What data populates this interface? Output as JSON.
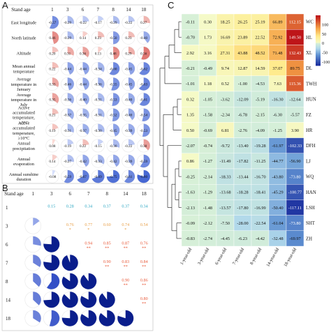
{
  "panels": {
    "a": "A",
    "b": "B",
    "c": "C"
  },
  "colors": {
    "positive": "#d7301f",
    "negative": "#2b5ecf",
    "dark_negative": "#0a1e8c",
    "corr_text": "#e85a3a",
    "corr_text_cyan": "#2aa6c2",
    "corr_text_orange": "#e8a04a"
  },
  "chart_data": [
    {
      "type": "heatmap",
      "panel": "A",
      "corner_label": "Stand age",
      "columns": [
        "1",
        "3",
        "6",
        "7",
        "8",
        "14",
        "18"
      ],
      "rows": [
        "East longitude",
        "North latitude",
        "Altitude",
        "Mean annual temperature",
        "Average temperature in January",
        "Average temperature in July",
        "Active accumulated temperature, ≥5°C",
        "Active accumulated temperature, ≥10°C",
        "Annual precipitation",
        "Annual evaporation",
        "Annual sunshine duration"
      ],
      "values": [
        [
          -0.57,
          -0.29,
          -0.22,
          -0.17,
          -0.29,
          -0.22,
          0.27
        ],
        [
          0.46,
          -0.29,
          0.14,
          0.23,
          -0.5,
          0.23,
          -0.4
        ],
        [
          0.2,
          0.31,
          0.36,
          0.13,
          0.48,
          0.29,
          0.56
        ],
        [
          0.22,
          -0.44,
          -0.44,
          -0.34,
          -0.6,
          -0.45,
          -0.62
        ],
        [
          0.33,
          -0.46,
          -0.44,
          -0.36,
          -0.55,
          -0.45,
          -0.63
        ],
        [
          0.35,
          -0.36,
          -0.4,
          -0.31,
          -0.53,
          -0.4,
          -0.61
        ],
        [
          0.21,
          -0.37,
          -0.35,
          -0.31,
          -0.52,
          -0.4,
          -0.54
        ],
        [
          0.19,
          -0.31,
          -0.37,
          -0.3,
          -0.45,
          -0.39,
          -0.53
        ],
        [
          0.08,
          -0.19,
          0.22,
          -0.15,
          -0.3,
          -0.22,
          0.38
        ],
        [
          0.14,
          -0.27,
          -0.42,
          -0.33,
          -0.42,
          -0.39,
          -0.59
        ],
        [
          -0.08,
          -0.59,
          -0.67,
          -0.69,
          -0.75,
          -0.61,
          -0.8
        ]
      ]
    },
    {
      "type": "heatmap",
      "panel": "B",
      "corner_label": "Stand age",
      "labels": [
        "1",
        "3",
        "6",
        "7",
        "8",
        "14",
        "18"
      ],
      "upper_values": {
        "0-1": 0.15,
        "0-2": 0.28,
        "0-3": 0.34,
        "0-4": 0.37,
        "0-5": 0.37,
        "0-6": 0.34,
        "1-2": 0.76,
        "1-3": 0.77,
        "1-4": 0.6,
        "1-5": 0.74,
        "1-6": 0.54,
        "2-3": 0.94,
        "2-4": 0.85,
        "2-5": 0.87,
        "2-6": 0.76,
        "3-4": 0.9,
        "3-5": 0.83,
        "3-6": 0.84,
        "4-5": 0.9,
        "4-6": 0.86,
        "5-6": 0.8
      },
      "upper_stars": {
        "1-2": "*",
        "1-3": "*",
        "1-5": "*",
        "2-3": "**",
        "2-4": "**",
        "2-5": "**",
        "2-6": "**",
        "3-4": "**",
        "3-5": "**",
        "3-6": "**",
        "4-5": "**",
        "4-6": "**",
        "5-6": "**"
      }
    },
    {
      "type": "heatmap",
      "panel": "C",
      "columns": [
        "1-year-old",
        "3-year-old",
        "6-year-old",
        "7-year-old",
        "8-year-old",
        "14-year-old",
        "18-year-old"
      ],
      "rows": [
        "WC",
        "HL",
        "XL",
        "DL",
        "TWH",
        "HUN",
        "FZ",
        "HR",
        "DFH",
        "LJ",
        "WQ",
        "HAN",
        "LSH",
        "SHT",
        "ZH"
      ],
      "values": [
        [
          -0.11,
          0.3,
          18.25,
          26.25,
          25.19,
          66.89,
          112.15
        ],
        [
          -0.7,
          1.73,
          16.69,
          23.89,
          22.52,
          72.92,
          149.5
        ],
        [
          2.92,
          3.16,
          27.31,
          43.88,
          48.52,
          71.48,
          132.43
        ],
        [
          -0.21,
          -0.49,
          9.74,
          12.87,
          14.59,
          37.07,
          89.75
        ],
        [
          -1.01,
          1.18,
          0.52,
          -1.0,
          -4.53,
          7.63,
          115.36
        ],
        [
          0.32,
          -1.05,
          -3.62,
          -12.09,
          -5.19,
          -16.3,
          -12.64
        ],
        [
          1.35,
          -1.58,
          -2.34,
          -6.78,
          -2.15,
          -6.3,
          -5.57
        ],
        [
          0.5,
          -0.69,
          6.81,
          -2.76,
          -4.09,
          -1.25,
          3.9
        ],
        [
          -2.07,
          -0.74,
          -9.72,
          -13.4,
          -19.28,
          -61.97,
          -102.33
        ],
        [
          0.86,
          -1.27,
          -11.49,
          -17.82,
          -11.25,
          -44.77,
          -56.9
        ],
        [
          -0.25,
          -2.14,
          -18.33,
          -13.44,
          -16.7,
          -43.8,
          -73.8
        ],
        [
          -1.63,
          -1.29,
          -13.68,
          -18.28,
          -18.41,
          -45.29,
          -100.77
        ],
        [
          -2.13,
          -1.48,
          -13.57,
          -17.8,
          -16.99,
          -50.4,
          -117.11
        ],
        [
          -0.09,
          -2.12,
          -7.5,
          -28.0,
          -22.54,
          -61.04,
          -73.8
        ],
        [
          -0.83,
          -2.74,
          -4.45,
          -6.23,
          -4.42,
          -32.48,
          -69.97
        ]
      ],
      "colorbar_ticks": [
        "100",
        "50",
        "0",
        "-50",
        "-100"
      ],
      "colorbar_range": [
        -120,
        150
      ]
    }
  ]
}
